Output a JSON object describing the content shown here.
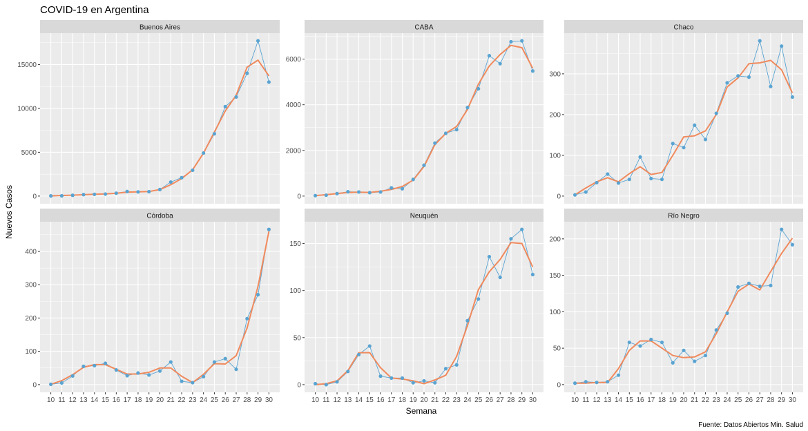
{
  "title": "COVID-19 en Argentina",
  "xlabel": "Semana",
  "ylabel": "Nuevos Casos",
  "caption": "Fuente: Datos Abiertos Min. Salud",
  "colors": {
    "observed": "#5aa4d2",
    "smoothed": "#f08a5d",
    "panel": "#ebebeb",
    "strip": "#d9d9d9",
    "grid": "#ffffff"
  },
  "chart_data": [
    {
      "type": "line",
      "panel": "Buenos Aires",
      "x": [
        10,
        11,
        12,
        13,
        14,
        15,
        16,
        17,
        18,
        19,
        20,
        21,
        22,
        23,
        24,
        25,
        26,
        27,
        28,
        29,
        30
      ],
      "series": [
        {
          "values": [
            20,
            30,
            90,
            170,
            200,
            230,
            330,
            520,
            480,
            500,
            750,
            1600,
            2100,
            2950,
            4900,
            7100,
            10200,
            11300,
            14000,
            17700,
            13000
          ]
        },
        {
          "values": [
            20,
            70,
            100,
            160,
            200,
            240,
            330,
            450,
            480,
            520,
            750,
            1300,
            2000,
            3000,
            4900,
            7300,
            9700,
            11500,
            14700,
            15500,
            13700
          ]
        }
      ],
      "xlim": [
        10,
        30
      ],
      "ylim": [
        0,
        17700
      ],
      "yticks": [
        0,
        5000,
        10000,
        15000
      ]
    },
    {
      "type": "line",
      "panel": "CABA",
      "x": [
        10,
        11,
        12,
        13,
        14,
        15,
        16,
        17,
        18,
        19,
        20,
        21,
        22,
        23,
        24,
        25,
        26,
        27,
        28,
        29,
        30
      ],
      "series": [
        {
          "values": [
            20,
            40,
            110,
            190,
            180,
            150,
            180,
            360,
            320,
            730,
            1350,
            2320,
            2750,
            2910,
            3880,
            4700,
            6150,
            5800,
            6760,
            6800,
            5480
          ]
        },
        {
          "values": [
            20,
            60,
            110,
            160,
            170,
            160,
            210,
            290,
            420,
            700,
            1300,
            2250,
            2750,
            3050,
            3800,
            4900,
            5700,
            6200,
            6600,
            6500,
            5600
          ]
        }
      ],
      "xlim": [
        10,
        30
      ],
      "ylim": [
        0,
        6800
      ],
      "yticks": [
        0,
        2000,
        4000,
        6000
      ]
    },
    {
      "type": "line",
      "panel": "Chaco",
      "x": [
        10,
        11,
        12,
        13,
        14,
        15,
        16,
        17,
        18,
        19,
        20,
        21,
        22,
        23,
        24,
        25,
        26,
        27,
        28,
        29,
        30
      ],
      "series": [
        {
          "values": [
            3,
            10,
            33,
            54,
            32,
            41,
            96,
            43,
            41,
            129,
            119,
            174,
            139,
            203,
            278,
            295,
            292,
            381,
            269,
            368,
            243
          ]
        },
        {
          "values": [
            3,
            20,
            35,
            45,
            35,
            55,
            72,
            53,
            58,
            100,
            145,
            148,
            160,
            200,
            268,
            290,
            325,
            327,
            333,
            310,
            253
          ]
        }
      ],
      "xlim": [
        10,
        30
      ],
      "ylim": [
        0,
        381
      ],
      "yticks": [
        0,
        100,
        200,
        300
      ]
    },
    {
      "type": "line",
      "panel": "Córdoba",
      "x": [
        10,
        11,
        12,
        13,
        14,
        15,
        16,
        17,
        18,
        19,
        20,
        21,
        22,
        23,
        24,
        25,
        26,
        27,
        28,
        29,
        30
      ],
      "series": [
        {
          "values": [
            1,
            5,
            26,
            55,
            57,
            64,
            44,
            27,
            35,
            29,
            41,
            68,
            10,
            6,
            24,
            68,
            78,
            46,
            198,
            270,
            466
          ]
        },
        {
          "values": [
            1,
            12,
            30,
            52,
            60,
            60,
            46,
            32,
            32,
            37,
            50,
            50,
            25,
            6,
            31,
            63,
            62,
            87,
            170,
            295,
            460
          ]
        }
      ],
      "xlim": [
        10,
        30
      ],
      "ylim": [
        0,
        466
      ],
      "yticks": [
        0,
        100,
        200,
        300,
        400
      ]
    },
    {
      "type": "line",
      "panel": "Neuquén",
      "x": [
        10,
        11,
        12,
        13,
        14,
        15,
        16,
        17,
        18,
        19,
        20,
        21,
        22,
        23,
        24,
        25,
        26,
        27,
        28,
        29,
        30
      ],
      "series": [
        {
          "values": [
            1,
            0,
            3,
            14,
            32,
            41,
            9,
            7,
            7,
            2,
            4,
            2,
            17,
            21,
            68,
            91,
            136,
            114,
            155,
            165,
            117
          ]
        },
        {
          "values": [
            0,
            1,
            4,
            15,
            34,
            34,
            18,
            7,
            6,
            4,
            1,
            5,
            10,
            30,
            63,
            101,
            120,
            133,
            151,
            150,
            125
          ]
        }
      ],
      "xlim": [
        10,
        30
      ],
      "ylim": [
        0,
        165
      ],
      "yticks": [
        0,
        50,
        100,
        150
      ]
    },
    {
      "type": "line",
      "panel": "Río Negro",
      "x": [
        10,
        11,
        12,
        13,
        14,
        15,
        16,
        17,
        18,
        19,
        20,
        21,
        22,
        23,
        24,
        25,
        26,
        27,
        28,
        29,
        30
      ],
      "series": [
        {
          "values": [
            2,
            4,
            3,
            4,
            13,
            58,
            53,
            62,
            58,
            30,
            47,
            32,
            40,
            75,
            98,
            134,
            139,
            135,
            136,
            213,
            192
          ]
        },
        {
          "values": [
            2,
            2,
            3,
            3,
            22,
            47,
            60,
            60,
            50,
            40,
            37,
            38,
            45,
            70,
            100,
            128,
            138,
            130,
            155,
            180,
            201
          ]
        }
      ],
      "xlim": [
        10,
        30
      ],
      "ylim": [
        0,
        213
      ],
      "yticks": [
        0,
        50,
        100,
        150,
        200
      ]
    }
  ]
}
